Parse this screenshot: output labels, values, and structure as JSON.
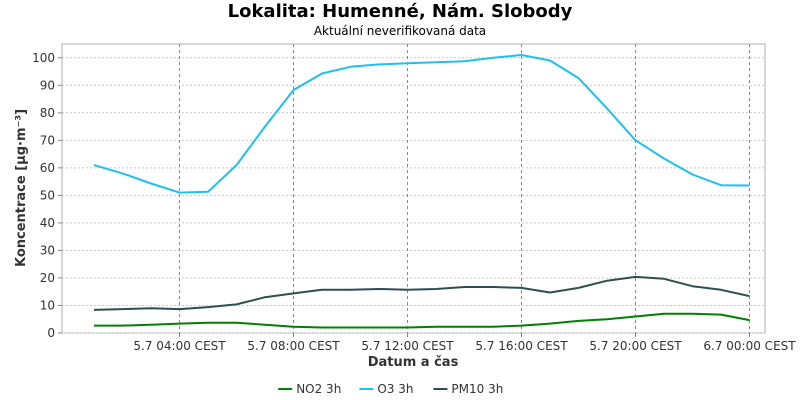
{
  "chart_data": {
    "type": "line",
    "title": "Lokalita: Humenné, Nám. Slobody",
    "subtitle": "Aktuální neverifikovaná data",
    "xlabel": "Datum a čas",
    "ylabel": "Koncentrace [µg·m⁻³]",
    "ylim": [
      0,
      105
    ],
    "y_ticks": [
      0,
      10,
      20,
      30,
      40,
      50,
      60,
      70,
      80,
      90,
      100
    ],
    "x": [
      "5.7 01:00",
      "5.7 02:00",
      "5.7 03:00",
      "5.7 04:00",
      "5.7 05:00",
      "5.7 06:00",
      "5.7 07:00",
      "5.7 08:00",
      "5.7 09:00",
      "5.7 10:00",
      "5.7 11:00",
      "5.7 12:00",
      "5.7 13:00",
      "5.7 14:00",
      "5.7 15:00",
      "5.7 16:00",
      "5.7 17:00",
      "5.7 18:00",
      "5.7 19:00",
      "5.7 20:00",
      "5.7 21:00",
      "5.7 22:00",
      "5.7 23:00",
      "6.7 00:00"
    ],
    "x_tick_labels": [
      {
        "x": "5.7 04:00",
        "label": "5.7 04:00 CEST"
      },
      {
        "x": "5.7 08:00",
        "label": "5.7 08:00 CEST"
      },
      {
        "x": "5.7 12:00",
        "label": "5.7 12:00 CEST"
      },
      {
        "x": "5.7 16:00",
        "label": "5.7 16:00 CEST"
      },
      {
        "x": "5.7 20:00",
        "label": "5.7 20:00 CEST"
      },
      {
        "x": "6.7 00:00",
        "label": "6.7 00:00 CEST"
      }
    ],
    "grid": true,
    "legend_position": "bottom",
    "series": [
      {
        "name": "NO2 3h",
        "color": "#008000",
        "values": [
          2.7,
          2.7,
          3.0,
          3.4,
          3.7,
          3.7,
          3.0,
          2.3,
          2.0,
          2.0,
          2.0,
          2.0,
          2.3,
          2.3,
          2.3,
          2.7,
          3.4,
          4.4,
          5.0,
          6.0,
          7.0,
          7.0,
          6.7,
          4.7
        ]
      },
      {
        "name": "O3 3h",
        "color": "#1ec0f0",
        "values": [
          61,
          58,
          54.3,
          51,
          51.3,
          61,
          75,
          88.3,
          94.3,
          96.7,
          97.6,
          98,
          98.4,
          98.7,
          100,
          101,
          99,
          92.6,
          81.6,
          70,
          63.4,
          57.6,
          53.7,
          53.6
        ]
      },
      {
        "name": "PM10 3h",
        "color": "#2f4f4f",
        "values": [
          8.4,
          8.7,
          9.0,
          8.7,
          9.4,
          10.4,
          13.0,
          14.4,
          15.7,
          15.7,
          16.0,
          15.7,
          16.0,
          16.7,
          16.7,
          16.4,
          14.7,
          16.4,
          19.0,
          20.4,
          19.7,
          17.0,
          15.7,
          13.4
        ]
      }
    ]
  }
}
